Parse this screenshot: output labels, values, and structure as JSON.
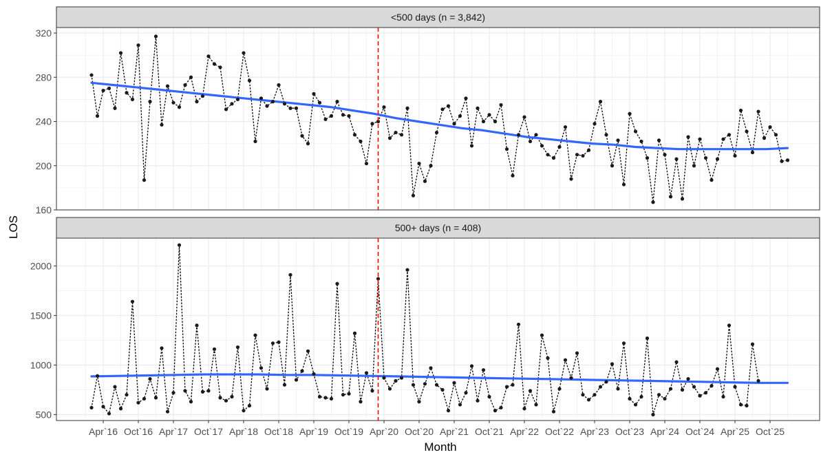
{
  "chart_data": {
    "type": "line",
    "xlabel": "Month",
    "ylabel": "LOS",
    "x_tick_labels": [
      "Apr`16",
      "Oct`16",
      "Apr`17",
      "Oct`17",
      "Apr`18",
      "Oct`18",
      "Apr`19",
      "Oct`19",
      "Apr`20",
      "Oct`20",
      "Apr`21",
      "Oct`21",
      "Apr`22",
      "Oct`22",
      "Apr`23",
      "Oct`23",
      "Apr`24",
      "Oct`24",
      "Apr`25",
      "Oct`25"
    ],
    "x_start_month": "2016-02",
    "reference_line": {
      "month": "2020-03",
      "style": "dashed",
      "color": "#ff0000"
    },
    "colors": {
      "smooth": "#3366ff",
      "points": "#1a1a1a",
      "strip": "#d9d9d9",
      "grid": "#ebebeb"
    },
    "panels": [
      {
        "title": "<500 days (n = 3,842)",
        "ylim": [
          160,
          325
        ],
        "yticks": [
          160,
          200,
          240,
          280,
          320
        ],
        "values": [
          282,
          245,
          268,
          270,
          252,
          302,
          266,
          260,
          309,
          187,
          258,
          317,
          237,
          272,
          257,
          253,
          273,
          280,
          258,
          263,
          299,
          292,
          289,
          251,
          256,
          260,
          302,
          277,
          222,
          261,
          254,
          258,
          273,
          256,
          252,
          252,
          227,
          220,
          265,
          257,
          242,
          245,
          258,
          246,
          245,
          228,
          222,
          202,
          238,
          240,
          253,
          225,
          230,
          228,
          252,
          173,
          202,
          186,
          200,
          230,
          251,
          254,
          238,
          245,
          261,
          218,
          252,
          240,
          246,
          240,
          255,
          215,
          191,
          228,
          244,
          222,
          228,
          218,
          210,
          207,
          217,
          235,
          188,
          210,
          209,
          214,
          238,
          258,
          228,
          200,
          223,
          183,
          247,
          231,
          222,
          207,
          167,
          223,
          210,
          172,
          206,
          170,
          226,
          200,
          224,
          207,
          187,
          206,
          224,
          228,
          209,
          250,
          231,
          212,
          249,
          225,
          235,
          228,
          204,
          205
        ],
        "smooth": [
          275,
          273,
          271,
          269,
          267,
          265,
          263,
          261,
          259,
          257,
          255,
          253,
          250,
          247,
          243,
          240,
          237,
          234,
          232,
          229,
          226,
          224,
          222,
          220,
          219,
          217,
          216,
          215,
          215,
          215,
          215,
          215,
          216
        ]
      },
      {
        "title": "500+ days (n = 408)",
        "ylim": [
          440,
          2280
        ],
        "yticks": [
          500,
          1000,
          1500,
          2000
        ],
        "values": [
          570,
          890,
          580,
          510,
          780,
          560,
          700,
          1640,
          620,
          660,
          860,
          670,
          1170,
          530,
          720,
          2210,
          740,
          630,
          1400,
          730,
          740,
          1160,
          670,
          640,
          680,
          1180,
          540,
          590,
          1300,
          970,
          760,
          1220,
          1230,
          800,
          1910,
          850,
          940,
          1140,
          910,
          680,
          670,
          660,
          1820,
          700,
          710,
          1320,
          630,
          920,
          740,
          1870,
          870,
          760,
          840,
          870,
          1960,
          800,
          630,
          810,
          970,
          800,
          750,
          540,
          820,
          600,
          720,
          990,
          640,
          950,
          680,
          540,
          570,
          780,
          800,
          1410,
          560,
          740,
          600,
          1300,
          1070,
          530,
          760,
          1050,
          870,
          1120,
          700,
          650,
          700,
          780,
          830,
          1010,
          760,
          1220,
          660,
          600,
          680,
          1270,
          500,
          700,
          660,
          760,
          1030,
          750,
          860,
          780,
          690,
          720,
          790,
          960,
          680,
          1400,
          780,
          600,
          590,
          1210,
          840
        ],
        "smooth": [
          885,
          890,
          895,
          900,
          905,
          905,
          905,
          900,
          900,
          895,
          890,
          885,
          880,
          875,
          870,
          865,
          860,
          855,
          850,
          845,
          840,
          835,
          830,
          825,
          820,
          820
        ]
      }
    ]
  }
}
